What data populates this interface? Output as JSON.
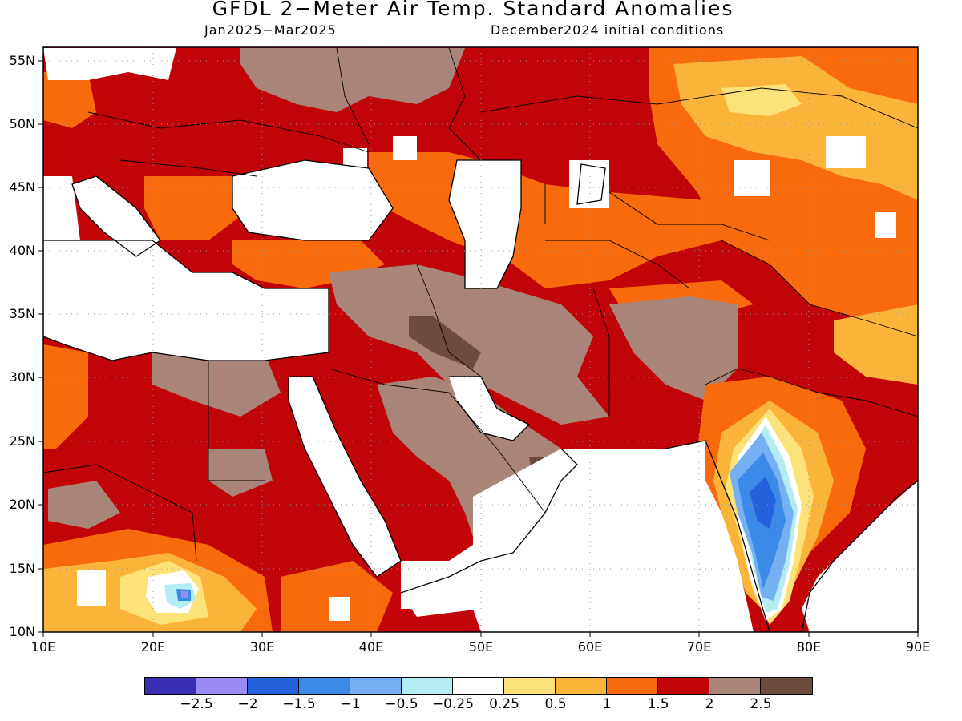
{
  "header": {
    "title": "GFDL 2−Meter Air Temp. Standard Anomalies",
    "period": "Jan2025−Mar2025",
    "init": "December2024 initial conditions"
  },
  "axes": {
    "lat_labels": [
      "55N",
      "50N",
      "45N",
      "40N",
      "35N",
      "30N",
      "25N",
      "20N",
      "15N",
      "10N"
    ],
    "lon_labels": [
      "10E",
      "20E",
      "30E",
      "40E",
      "50E",
      "60E",
      "70E",
      "80E",
      "90E"
    ]
  },
  "colorbar": {
    "colors": [
      "#3a2fb4",
      "#9b8cf5",
      "#2260dc",
      "#3b8ae8",
      "#74b0f2",
      "#b4ecf4",
      "#ffffff",
      "#fde27a",
      "#fbb43a",
      "#f86a0c",
      "#c00408",
      "#a88578",
      "#6d4c40"
    ],
    "labels": [
      "−2.5",
      "−2",
      "−1.5",
      "−1",
      "−0.5",
      "−0.25",
      "0.25",
      "0.5",
      "1",
      "1.5",
      "2",
      "2.5"
    ]
  },
  "map_colors": {
    "white": "#ffffff",
    "dark_red": "#c00408",
    "orange": "#f86a0c",
    "light_orange": "#fbb43a",
    "yellow": "#fde27a",
    "brown": "#a88578",
    "dark_brown": "#6d4c40",
    "light_blue": "#b4ecf4",
    "blue": "#74b0f2",
    "med_blue": "#3b8ae8",
    "dark_blue": "#2260dc",
    "purple": "#9b8cf5"
  }
}
